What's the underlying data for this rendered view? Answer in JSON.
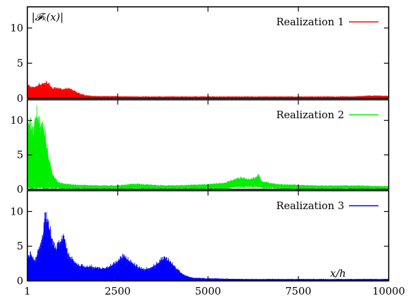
{
  "chart_data": {
    "type": "area",
    "panel_count": 3,
    "ylabel": "|𝓕ₖ(x)|",
    "xlabel": "x/h",
    "xlim": [
      1,
      10000
    ],
    "ylim": [
      0,
      13
    ],
    "xticks": [
      1,
      2500,
      5000,
      7500,
      10000
    ],
    "xtick_labels": [
      "1",
      "2500",
      "5000",
      "7500",
      "10000"
    ],
    "yticks": [
      0,
      5,
      10
    ],
    "ytick_labels": [
      "0",
      "5",
      "10"
    ],
    "legend_position": "top-right",
    "series": [
      {
        "name": "Realization 1",
        "color": "#ff0000",
        "x": [
          1,
          100,
          200,
          300,
          400,
          500,
          600,
          700,
          800,
          900,
          1000,
          1100,
          1200,
          1300,
          1400,
          1500,
          1600,
          1800,
          2000,
          2500,
          3000,
          3500,
          4000,
          5000,
          6000,
          7000,
          8000,
          9000,
          9500,
          10000
        ],
        "y": [
          2.4,
          1.7,
          1.9,
          2.1,
          2.4,
          2.6,
          2.4,
          1.6,
          1.7,
          1.6,
          1.5,
          1.6,
          1.4,
          1.3,
          0.9,
          0.7,
          0.5,
          0.4,
          0.35,
          0.35,
          0.3,
          0.3,
          0.3,
          0.3,
          0.3,
          0.3,
          0.3,
          0.3,
          0.45,
          0.4
        ],
        "ymin": [
          0,
          0,
          0,
          0,
          0,
          0,
          0,
          0,
          0,
          0,
          0,
          0,
          0,
          0,
          0,
          0,
          0,
          0,
          0,
          0,
          0,
          0,
          0,
          0,
          0,
          0,
          0,
          0,
          0,
          0
        ]
      },
      {
        "name": "Realization 2",
        "color": "#00ee00",
        "x": [
          1,
          100,
          150,
          200,
          250,
          300,
          350,
          400,
          450,
          500,
          550,
          600,
          650,
          700,
          800,
          900,
          1000,
          1200,
          1500,
          2000,
          2500,
          3000,
          3500,
          4000,
          4500,
          5000,
          5500,
          5700,
          5900,
          6100,
          6300,
          6400,
          6500,
          7000,
          8000,
          9000,
          10000
        ],
        "y": [
          11.8,
          10.4,
          9.0,
          12.0,
          12.5,
          11.8,
          10.5,
          11.5,
          10.2,
          8.5,
          6.8,
          5.0,
          3.5,
          2.5,
          1.5,
          1.1,
          0.9,
          0.8,
          0.7,
          0.6,
          0.6,
          0.9,
          0.7,
          0.6,
          0.7,
          0.8,
          1.1,
          1.6,
          1.9,
          1.6,
          1.8,
          2.3,
          1.2,
          0.8,
          0.6,
          0.6,
          0.5
        ],
        "ymin": [
          0.3,
          0.3,
          0.3,
          0.3,
          0.3,
          0.3,
          0.3,
          0.3,
          0.3,
          0.3,
          0.3,
          0.3,
          0.3,
          0.3,
          0.25,
          0.25,
          0.25,
          0.2,
          0.2,
          0.2,
          0.2,
          0.2,
          0.2,
          0.2,
          0.2,
          0.2,
          0.2,
          0.5,
          0.6,
          0.6,
          0.6,
          0.7,
          0.4,
          0.2,
          0.2,
          0.2,
          0.2
        ]
      },
      {
        "name": "Realization 3",
        "color": "#0000ff",
        "x": [
          1,
          100,
          200,
          300,
          400,
          450,
          500,
          600,
          700,
          800,
          900,
          1000,
          1100,
          1200,
          1400,
          1600,
          1800,
          2000,
          2200,
          2400,
          2500,
          2600,
          2700,
          2800,
          3000,
          3200,
          3400,
          3600,
          3700,
          3800,
          3900,
          4000,
          4200,
          4400,
          4600,
          5000,
          6000,
          7000,
          8000,
          9000,
          10000
        ],
        "y": [
          3.3,
          4.6,
          3.1,
          5.0,
          6.2,
          8.5,
          10.8,
          9.0,
          6.2,
          5.0,
          6.6,
          6.9,
          4.9,
          3.8,
          2.6,
          2.3,
          2.4,
          2.0,
          2.2,
          2.8,
          3.3,
          3.9,
          4.0,
          3.5,
          2.5,
          1.9,
          2.2,
          2.9,
          3.5,
          3.7,
          3.4,
          2.9,
          1.6,
          0.8,
          0.5,
          0.4,
          0.3,
          0.3,
          0.3,
          0.3,
          0.3
        ],
        "ymin": [
          0,
          0,
          0,
          0,
          0,
          0,
          0,
          0,
          0,
          0,
          0,
          0,
          0,
          0,
          0,
          0,
          0,
          0,
          0,
          0,
          0,
          0,
          0,
          0,
          0,
          0,
          0,
          0,
          0,
          0,
          0,
          0,
          0,
          0,
          0,
          0,
          0,
          0,
          0,
          0,
          0
        ]
      }
    ]
  }
}
